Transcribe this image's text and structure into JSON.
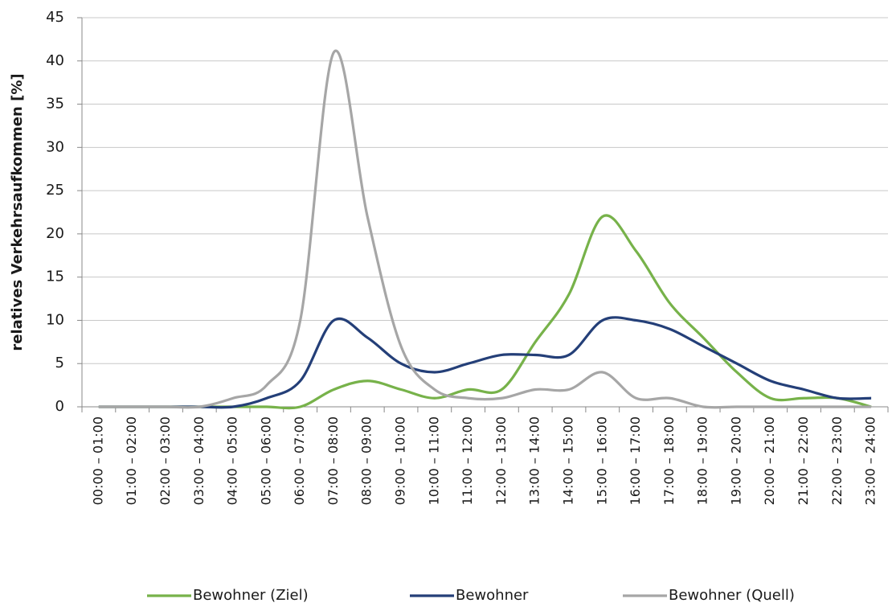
{
  "chart_data": {
    "type": "line",
    "y_label": "relatives Verkehrsaufkommen [%]",
    "categories": [
      "00:00 – 01:00",
      "01:00 – 02:00",
      "02:00 – 03:00",
      "03:00 – 04:00",
      "04:00 – 05:00",
      "05:00 – 06:00",
      "06:00 – 07:00",
      "07:00 – 08:00",
      "08:00 – 09:00",
      "09:00 – 10:00",
      "10:00 – 11:00",
      "11:00 – 12:00",
      "12:00 – 13:00",
      "13:00 – 14:00",
      "14:00 – 15:00",
      "15:00 – 16:00",
      "16:00 – 17:00",
      "17:00 – 18:00",
      "18:00 – 19:00",
      "19:00 – 20:00",
      "20:00 – 21:00",
      "21:00 – 22:00",
      "22:00 – 23:00",
      "23:00 – 24:00"
    ],
    "series": [
      {
        "name": "Bewohner (Ziel)",
        "color": "#77b24a",
        "values": [
          0,
          0,
          0,
          0,
          0,
          0,
          0,
          2,
          3,
          2,
          1,
          2,
          2,
          7.5,
          13,
          22,
          18,
          12,
          8,
          4,
          1,
          1,
          1,
          0
        ]
      },
      {
        "name": "Bewohner",
        "color": "#243f78",
        "values": [
          0,
          0,
          0,
          0,
          0,
          1,
          3,
          10,
          8,
          5,
          4,
          5,
          6,
          6,
          6,
          10,
          10,
          9,
          7,
          5,
          3,
          2,
          1,
          1
        ]
      },
      {
        "name": "Bewohner (Quell)",
        "color": "#a6a6a6",
        "values": [
          0,
          0,
          0,
          0,
          1,
          2.5,
          10,
          41,
          22,
          7,
          2,
          1,
          1,
          2,
          2,
          4,
          1,
          1,
          0,
          0,
          0,
          0,
          0,
          0
        ]
      }
    ],
    "ylim": [
      0,
      45
    ],
    "yticks": [
      0,
      5,
      10,
      15,
      20,
      25,
      30,
      35,
      40,
      45
    ],
    "grid": true
  }
}
